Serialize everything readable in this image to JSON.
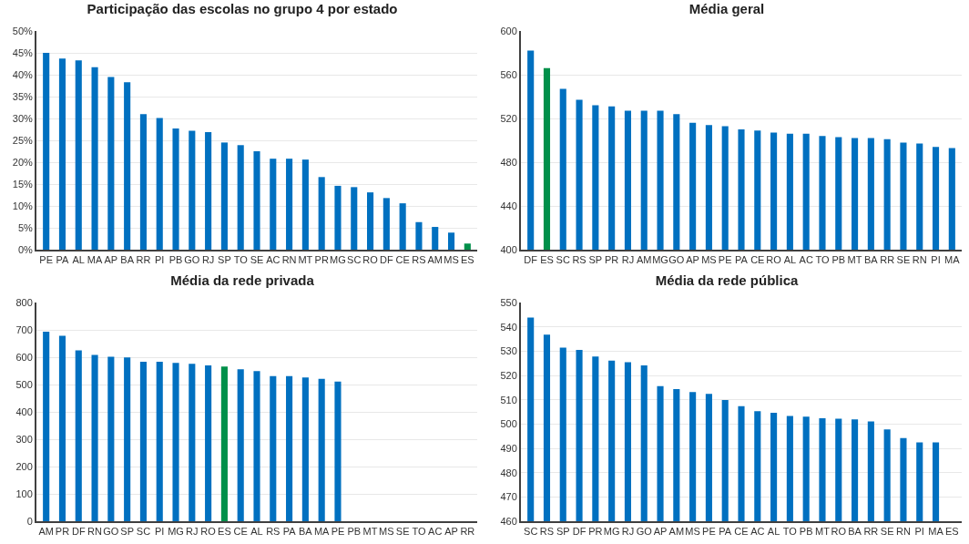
{
  "chart_data": [
    {
      "type": "bar",
      "title": "Participação das escolas no grupo 4 por estado",
      "categories": [
        "PE",
        "PA",
        "AL",
        "MA",
        "AP",
        "BA",
        "RR",
        "PI",
        "PB",
        "GO",
        "RJ",
        "SP",
        "TO",
        "SE",
        "AC",
        "RN",
        "MT",
        "PR",
        "MG",
        "SC",
        "RO",
        "DF",
        "CE",
        "RS",
        "AM",
        "MS",
        "ES"
      ],
      "values": [
        45,
        43.7,
        43.3,
        41.7,
        39.5,
        38.3,
        31,
        30.1,
        27.7,
        27.2,
        26.9,
        24.5,
        23.9,
        22.5,
        20.8,
        20.8,
        20.6,
        16.6,
        14.6,
        14.3,
        13.1,
        11.8,
        10.6,
        6.3,
        5.2,
        3.9,
        1.4
      ],
      "colors": [
        "#0070c0",
        "#0070c0",
        "#0070c0",
        "#0070c0",
        "#0070c0",
        "#0070c0",
        "#0070c0",
        "#0070c0",
        "#0070c0",
        "#0070c0",
        "#0070c0",
        "#0070c0",
        "#0070c0",
        "#0070c0",
        "#0070c0",
        "#0070c0",
        "#0070c0",
        "#0070c0",
        "#0070c0",
        "#0070c0",
        "#0070c0",
        "#0070c0",
        "#0070c0",
        "#0070c0",
        "#0070c0",
        "#0070c0",
        "#00904a"
      ],
      "ylim": [
        0,
        50
      ],
      "yticks": [
        {
          "value": 0,
          "label": "0%"
        },
        {
          "value": 5,
          "label": "5%"
        },
        {
          "value": 10,
          "label": "10%"
        },
        {
          "value": 15,
          "label": "15%"
        },
        {
          "value": 20,
          "label": "20%"
        },
        {
          "value": 25,
          "label": "25%"
        },
        {
          "value": 30,
          "label": "30%"
        },
        {
          "value": 35,
          "label": "35%"
        },
        {
          "value": 40,
          "label": "40%"
        },
        {
          "value": 45,
          "label": "45%"
        },
        {
          "value": 50,
          "label": "50%"
        }
      ],
      "grid": "y"
    },
    {
      "type": "bar",
      "title": "Média geral",
      "categories": [
        "DF",
        "ES",
        "SC",
        "RS",
        "SP",
        "PR",
        "RJ",
        "AM",
        "MG",
        "GO",
        "AP",
        "MS",
        "PE",
        "PA",
        "CE",
        "RO",
        "AL",
        "AC",
        "TO",
        "PB",
        "MT",
        "BA",
        "RR",
        "SE",
        "RN",
        "PI",
        "MA"
      ],
      "values": [
        582,
        566,
        547,
        537,
        532,
        531,
        527,
        527,
        527,
        524,
        516,
        514,
        513,
        510,
        509,
        507,
        506,
        506,
        504,
        503,
        502,
        502,
        501,
        498,
        497,
        494,
        493
      ],
      "colors": [
        "#0070c0",
        "#00904a",
        "#0070c0",
        "#0070c0",
        "#0070c0",
        "#0070c0",
        "#0070c0",
        "#0070c0",
        "#0070c0",
        "#0070c0",
        "#0070c0",
        "#0070c0",
        "#0070c0",
        "#0070c0",
        "#0070c0",
        "#0070c0",
        "#0070c0",
        "#0070c0",
        "#0070c0",
        "#0070c0",
        "#0070c0",
        "#0070c0",
        "#0070c0",
        "#0070c0",
        "#0070c0",
        "#0070c0",
        "#0070c0"
      ],
      "ylim": [
        400,
        600
      ],
      "yticks": [
        400,
        440,
        480,
        520,
        560,
        600
      ],
      "grid": "y"
    },
    {
      "type": "bar",
      "title": "Média da rede privada",
      "categories": [
        "AM",
        "PR",
        "DF",
        "RN",
        "GO",
        "SP",
        "SC",
        "PI",
        "MG",
        "RJ",
        "RO",
        "ES",
        "CE",
        "AL",
        "RS",
        "PA",
        "BA",
        "MA",
        "PE",
        "PB",
        "MT",
        "MS",
        "SE",
        "TO",
        "AC",
        "AP",
        "RR"
      ],
      "values": [
        693,
        678,
        625,
        608,
        602,
        599,
        583,
        583,
        579,
        576,
        570,
        566,
        556,
        549,
        531,
        531,
        526,
        521,
        511,
        null,
        null,
        null,
        null,
        null,
        null,
        null,
        null
      ],
      "colors": [
        "#0070c0",
        "#0070c0",
        "#0070c0",
        "#0070c0",
        "#0070c0",
        "#0070c0",
        "#0070c0",
        "#0070c0",
        "#0070c0",
        "#0070c0",
        "#0070c0",
        "#00904a",
        "#0070c0",
        "#0070c0",
        "#0070c0",
        "#0070c0",
        "#0070c0",
        "#0070c0",
        "#0070c0",
        "#0070c0",
        "#0070c0",
        "#0070c0",
        "#0070c0",
        "#0070c0",
        "#0070c0",
        "#0070c0",
        "#0070c0"
      ],
      "ylim": [
        0,
        800
      ],
      "yticks": [
        0,
        100,
        200,
        300,
        400,
        500,
        600,
        700,
        800
      ],
      "grid": "y"
    },
    {
      "type": "bar",
      "title": "Média da rede pública",
      "categories": [
        "SC",
        "RS",
        "SP",
        "DF",
        "PR",
        "MG",
        "RJ",
        "GO",
        "AP",
        "AM",
        "MS",
        "PE",
        "PA",
        "CE",
        "AC",
        "AL",
        "TO",
        "PB",
        "MT",
        "RO",
        "BA",
        "RR",
        "SE",
        "RN",
        "PI",
        "MA",
        "ES"
      ],
      "values": [
        543.8,
        536.8,
        531.4,
        530.5,
        527.8,
        526.1,
        525.4,
        524.1,
        515.6,
        514.4,
        513.2,
        512.4,
        509.9,
        507.3,
        505.3,
        504.6,
        503.3,
        503,
        502.4,
        502.2,
        501.9,
        501.1,
        497.8,
        494.2,
        492.4,
        492.4,
        null
      ],
      "color": "#0070c0",
      "ylim": [
        460,
        550
      ],
      "yticks": [
        460,
        470,
        480,
        490,
        500,
        510,
        520,
        530,
        540,
        550
      ],
      "grid": "y"
    }
  ]
}
